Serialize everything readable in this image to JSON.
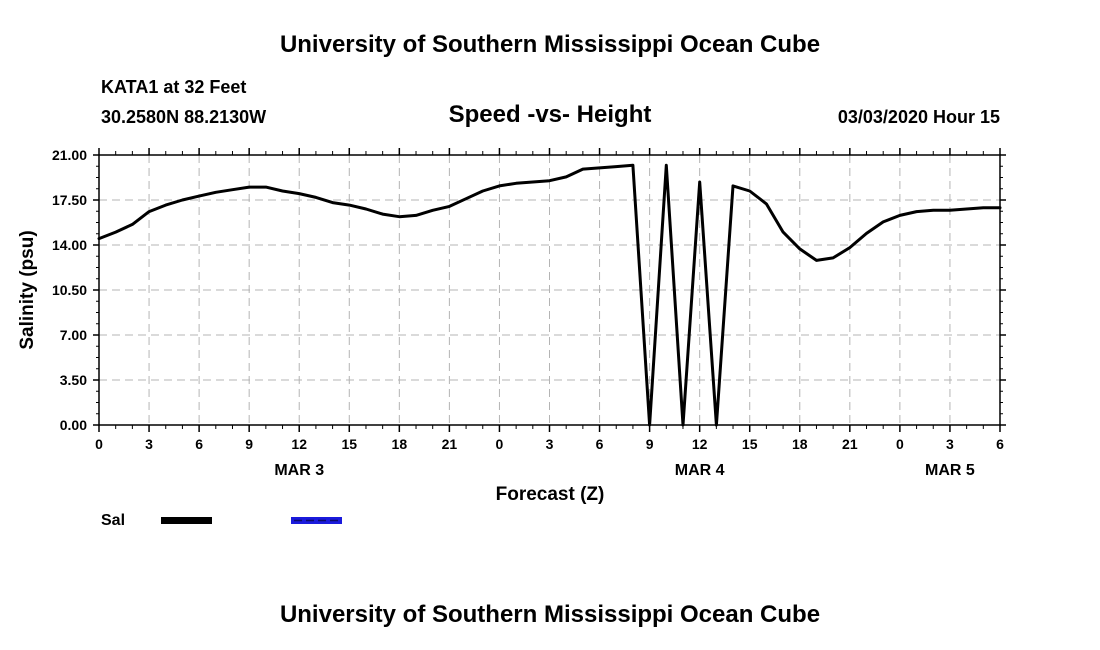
{
  "header": {
    "title": "University of Southern Mississippi Ocean Cube",
    "station": "KATA1 at 32 Feet",
    "coords": "30.2580N 88.2130W",
    "chart_title": "Speed -vs- Height",
    "datetime": "03/03/2020 Hour 15"
  },
  "footer": {
    "title": "University of Southern Mississippi Ocean Cube"
  },
  "colors": {
    "series_sal": "#000000",
    "legend_dashed": "#1a1adc",
    "grid": "#b4b4b4"
  },
  "chart_data": {
    "type": "line",
    "title": "Speed -vs- Height",
    "xlabel": "Forecast (Z)",
    "ylabel": "Salinity (psu)",
    "ylim": [
      0,
      21
    ],
    "xlim": [
      0,
      54
    ],
    "x_unit": "hours since 00Z MAR 3",
    "yticks": [
      "0.00",
      "3.50",
      "7.00",
      "10.50",
      "14.00",
      "17.50",
      "21.00"
    ],
    "xticks": [
      {
        "x": 0,
        "label": "0"
      },
      {
        "x": 3,
        "label": "3"
      },
      {
        "x": 6,
        "label": "6"
      },
      {
        "x": 9,
        "label": "9"
      },
      {
        "x": 12,
        "label": "12"
      },
      {
        "x": 15,
        "label": "15"
      },
      {
        "x": 18,
        "label": "18"
      },
      {
        "x": 21,
        "label": "21"
      },
      {
        "x": 24,
        "label": "0"
      },
      {
        "x": 27,
        "label": "3"
      },
      {
        "x": 30,
        "label": "6"
      },
      {
        "x": 33,
        "label": "9"
      },
      {
        "x": 36,
        "label": "12"
      },
      {
        "x": 39,
        "label": "15"
      },
      {
        "x": 42,
        "label": "18"
      },
      {
        "x": 45,
        "label": "21"
      },
      {
        "x": 48,
        "label": "0"
      },
      {
        "x": 51,
        "label": "3"
      },
      {
        "x": 54,
        "label": "6"
      }
    ],
    "day_labels": [
      {
        "x": 12,
        "label": "MAR 3"
      },
      {
        "x": 36,
        "label": "MAR 4"
      },
      {
        "x": 51,
        "label": "MAR 5"
      }
    ],
    "grid": true,
    "series": [
      {
        "name": "Sal",
        "x": [
          0,
          1,
          2,
          3,
          4,
          5,
          6,
          7,
          8,
          9,
          10,
          11,
          12,
          13,
          14,
          15,
          16,
          17,
          18,
          19,
          20,
          21,
          22,
          23,
          24,
          25,
          26,
          27,
          28,
          29,
          30,
          31,
          32,
          33,
          34,
          35,
          36,
          37,
          38,
          39,
          40,
          41,
          42,
          43,
          44,
          45,
          46,
          47,
          48,
          49,
          50,
          51,
          52,
          53,
          54
        ],
        "values": [
          14.5,
          15.0,
          15.6,
          16.6,
          17.1,
          17.5,
          17.8,
          18.1,
          18.3,
          18.5,
          18.5,
          18.2,
          18.0,
          17.7,
          17.3,
          17.1,
          16.8,
          16.4,
          16.2,
          16.3,
          16.7,
          17.0,
          17.6,
          18.2,
          18.6,
          18.8,
          18.9,
          19.0,
          19.3,
          19.9,
          20.0,
          20.1,
          20.2,
          0.0,
          20.2,
          0.0,
          18.9,
          0.0,
          18.6,
          18.2,
          17.2,
          15.0,
          13.7,
          12.8,
          13.0,
          13.8,
          14.9,
          15.8,
          16.3,
          16.6,
          16.7,
          16.7,
          16.8,
          16.9,
          16.9
        ]
      }
    ],
    "legend": {
      "placement": "bottom-left",
      "label": "Sal"
    }
  }
}
